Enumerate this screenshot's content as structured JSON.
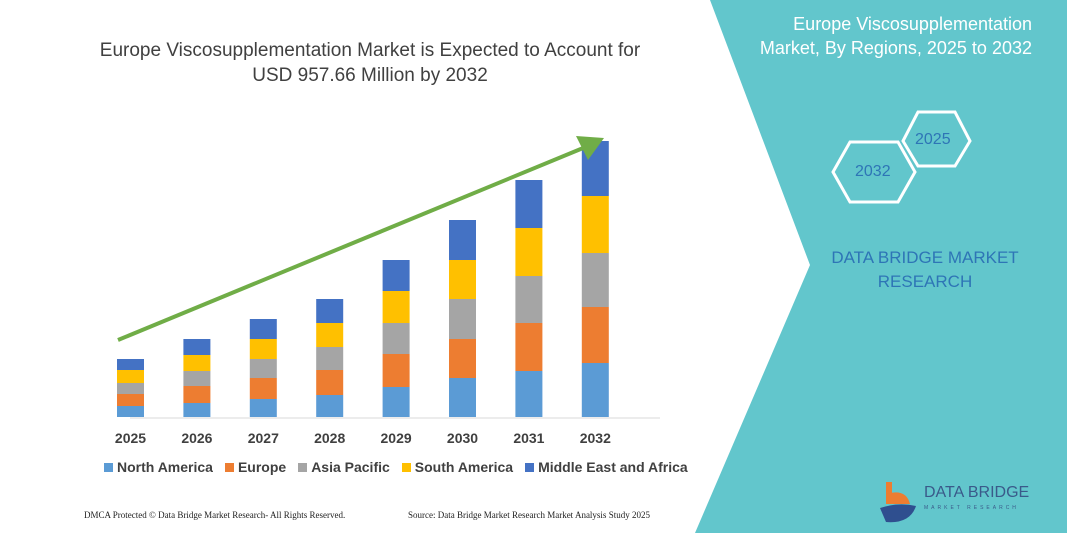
{
  "title_line1": "Europe Viscosupplementation Market is Expected to Account for",
  "title_line2": "USD 957.66 Million by 2032",
  "panel": {
    "title_line1": "Europe Viscosupplementation",
    "title_line2": "Market, By Regions, 2025 to 2032",
    "hex_a": "2025",
    "hex_b": "2032",
    "brand_line1": "DATA BRIDGE MARKET",
    "brand_line2": "RESEARCH",
    "color": "#62c6cc"
  },
  "footer": {
    "left": "DMCA Protected © Data Bridge Market Research- All Rights Reserved.",
    "right": "Source: Data Bridge Market Research  Market Analysis Study 2025"
  },
  "logo": {
    "name": "DATA BRIDGE",
    "sub": "MARKET RESEARCH"
  },
  "chart_data": {
    "type": "bar",
    "stacked": true,
    "grid": false,
    "legend_position": "bottom",
    "trend_arrow": true,
    "categories": [
      "2025",
      "2026",
      "2027",
      "2028",
      "2029",
      "2030",
      "2031",
      "2032"
    ],
    "series": [
      {
        "name": "North America",
        "color": "#5b9bd5",
        "values": [
          11,
          14,
          18,
          22,
          30,
          39,
          46,
          54
        ]
      },
      {
        "name": "Europe",
        "color": "#ed7d31",
        "values": [
          12,
          17,
          21,
          25,
          33,
          39,
          48,
          56
        ]
      },
      {
        "name": "Asia Pacific",
        "color": "#a5a5a5",
        "values": [
          11,
          15,
          19,
          23,
          31,
          40,
          47,
          54
        ]
      },
      {
        "name": "South America",
        "color": "#ffc000",
        "values": [
          13,
          16,
          20,
          24,
          32,
          39,
          48,
          57
        ]
      },
      {
        "name": "Middle East and Africa",
        "color": "#4472c4",
        "values": [
          11,
          16,
          20,
          24,
          31,
          40,
          48,
          55
        ]
      }
    ]
  }
}
